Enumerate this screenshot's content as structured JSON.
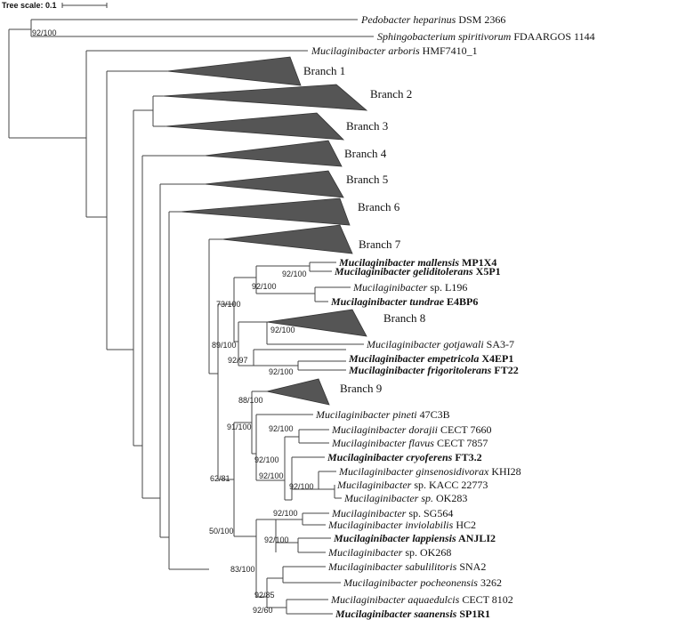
{
  "scale": {
    "label": "Tree scale: 0.1"
  },
  "taxa": {
    "pedobacter": {
      "genus": "Pedobacter heparinus",
      "rest": " DSM 2366"
    },
    "sphingo": {
      "genus": "Sphingobacterium spiritivorum",
      "rest": " FDAARGOS 1144"
    },
    "arboris": {
      "genus": "Mucilaginibacter arboris",
      "rest": " HMF7410_1"
    },
    "mallensis": {
      "genus": "Mucilaginibacter mallensis",
      "rest": " MP1X4"
    },
    "geliditolerans": {
      "genus": "Mucilaginibacter geliditolerans",
      "rest": " X5P1"
    },
    "l196": {
      "genus": "Mucilaginibacter",
      "rest": " sp. L196"
    },
    "tundrae": {
      "genus": "Mucilaginibacter tundrae",
      "rest": " E4BP6"
    },
    "gotjawali": {
      "genus": "Mucilaginibacter gotjawali",
      "rest": " SA3-7"
    },
    "empetricola": {
      "genus": "Mucilaginibacter empetricola",
      "rest": " X4EP1"
    },
    "frigoritolerans": {
      "genus": "Mucilaginibacter frigoritolerans",
      "rest": " FT22"
    },
    "pineti": {
      "genus": "Mucilaginibacter pineti",
      "rest": " 47C3B"
    },
    "dorajii": {
      "genus": "Mucilaginibacter dorajii",
      "rest": " CECT 7660"
    },
    "flavus": {
      "genus": "Mucilaginibacter flavus",
      "rest": " CECT 7857"
    },
    "cryoferens": {
      "genus": "Mucilaginibacter cryoferens",
      "rest": " FT3.2"
    },
    "ginsenosidivorax": {
      "genus": "Mucilaginibacter ginsenosidivorax",
      "rest": " KHI28"
    },
    "kacc": {
      "genus": "Mucilaginibacter",
      "rest": " sp. KACC 22773"
    },
    "ok283": {
      "genus": "Mucilaginibacter sp.",
      "rest": " OK283"
    },
    "sg564": {
      "genus": "Mucilaginibacter",
      "rest": " sp. SG564"
    },
    "inviolabilis": {
      "genus": "Mucilaginibacter inviolabilis",
      "rest": " HC2"
    },
    "lappiensis": {
      "genus": "Mucilaginibacter lappiensis",
      "rest": " ANJLI2"
    },
    "ok268": {
      "genus": "Mucilaginibacter",
      "rest": " sp. OK268"
    },
    "sabulilitoris": {
      "genus": "Mucilaginibacter sabulilitoris",
      "rest": " SNA2"
    },
    "pocheonensis": {
      "genus": "Mucilaginibacter pocheonensis",
      "rest": " 3262"
    },
    "aquaedulcis": {
      "genus": "Mucilaginibacter aquaedulcis",
      "rest": " CECT 8102"
    },
    "saanensis": {
      "genus": "Mucilaginibacter saanensis",
      "rest": " SP1R1"
    }
  },
  "branches": {
    "b1": "Branch 1",
    "b2": "Branch 2",
    "b3": "Branch 3",
    "b4": "Branch 4",
    "b5": "Branch 5",
    "b6": "Branch 6",
    "b7": "Branch 7",
    "b8": "Branch 8",
    "b9": "Branch 9"
  },
  "support": {
    "s1": "92/100",
    "s2": "73/100",
    "s3": "92/100",
    "s4": "92/100",
    "s5": "89/100",
    "s6": "92/100",
    "s7": "92/97",
    "s8": "92/100",
    "s9": "88/100",
    "s10": "91/100",
    "s11": "92/100",
    "s12": "92/100",
    "s13": "92/100",
    "s14": "92/100",
    "s15": "62/81",
    "s16": "50/100",
    "s17": "92/100",
    "s18": "92/100",
    "s19": "83/100",
    "s20": "92/85",
    "s21": "92/60"
  }
}
